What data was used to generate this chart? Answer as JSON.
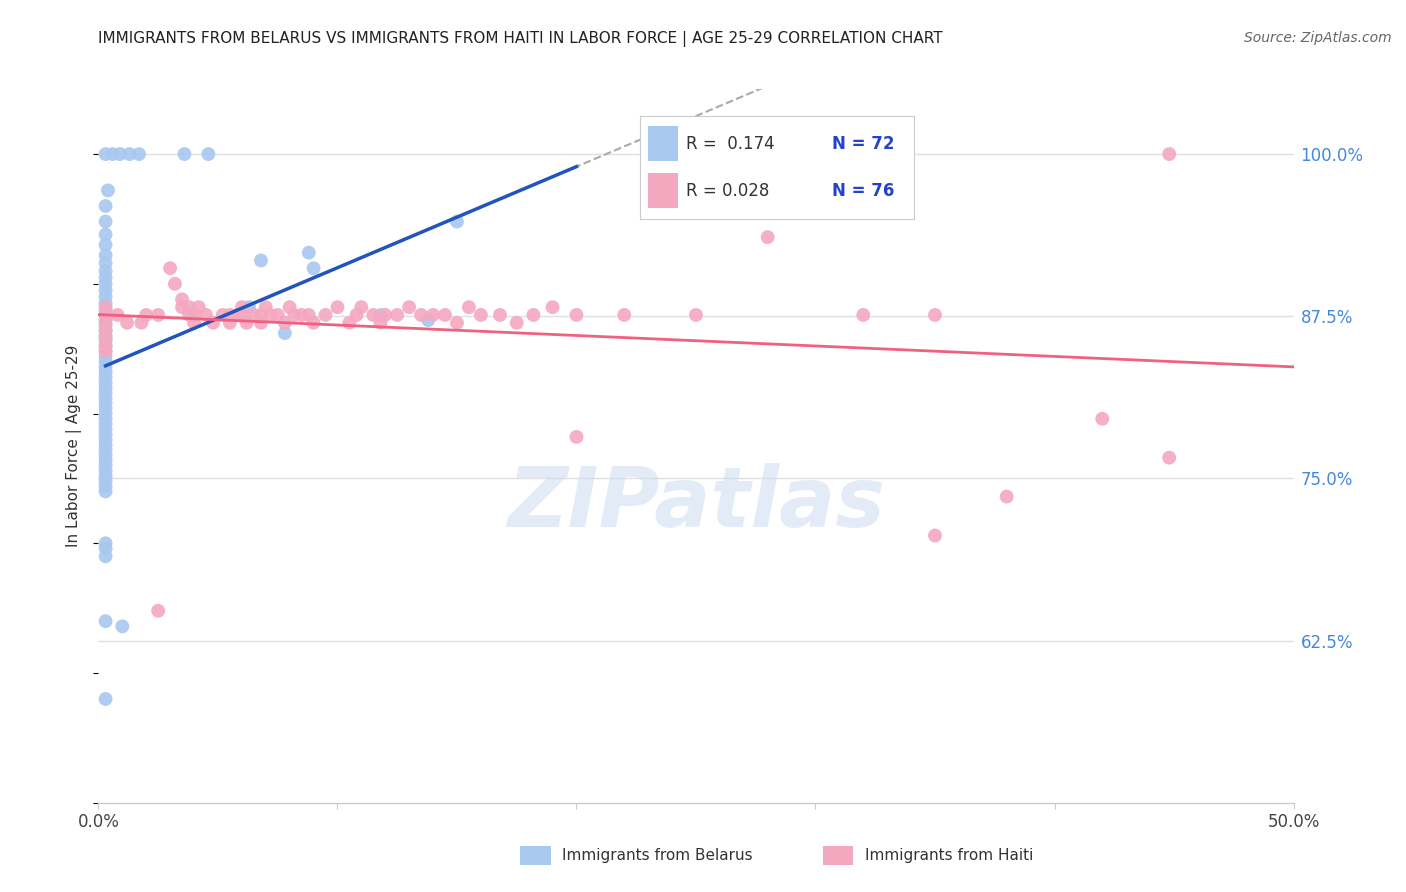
{
  "title": "IMMIGRANTS FROM BELARUS VS IMMIGRANTS FROM HAITI IN LABOR FORCE | AGE 25-29 CORRELATION CHART",
  "source": "Source: ZipAtlas.com",
  "ylabel": "In Labor Force | Age 25-29",
  "xlim": [
    0.0,
    0.5
  ],
  "ylim": [
    0.5,
    1.05
  ],
  "ytick_positions": [
    0.625,
    0.75,
    0.875,
    1.0
  ],
  "ytick_labels_right": [
    "62.5%",
    "75.0%",
    "87.5%",
    "100.0%"
  ],
  "blue_color": "#a8c8f0",
  "pink_color": "#f4a8c0",
  "blue_line_color": "#2255bb",
  "pink_line_color": "#f06080",
  "dash_color": "#aaaaaa",
  "blue_scatter": [
    [
      0.003,
      1.0
    ],
    [
      0.006,
      1.0
    ],
    [
      0.009,
      1.0
    ],
    [
      0.013,
      1.0
    ],
    [
      0.017,
      1.0
    ],
    [
      0.036,
      1.0
    ],
    [
      0.046,
      1.0
    ],
    [
      0.004,
      0.972
    ],
    [
      0.003,
      0.96
    ],
    [
      0.003,
      0.948
    ],
    [
      0.003,
      0.938
    ],
    [
      0.003,
      0.93
    ],
    [
      0.003,
      0.922
    ],
    [
      0.003,
      0.916
    ],
    [
      0.003,
      0.91
    ],
    [
      0.003,
      0.905
    ],
    [
      0.003,
      0.9
    ],
    [
      0.003,
      0.895
    ],
    [
      0.003,
      0.89
    ],
    [
      0.003,
      0.885
    ],
    [
      0.003,
      0.88
    ],
    [
      0.003,
      0.876
    ],
    [
      0.003,
      0.872
    ],
    [
      0.003,
      0.868
    ],
    [
      0.003,
      0.864
    ],
    [
      0.003,
      0.86
    ],
    [
      0.003,
      0.856
    ],
    [
      0.003,
      0.852
    ],
    [
      0.003,
      0.848
    ],
    [
      0.003,
      0.844
    ],
    [
      0.003,
      0.84
    ],
    [
      0.003,
      0.836
    ],
    [
      0.003,
      0.832
    ],
    [
      0.003,
      0.828
    ],
    [
      0.003,
      0.824
    ],
    [
      0.003,
      0.82
    ],
    [
      0.003,
      0.816
    ],
    [
      0.003,
      0.812
    ],
    [
      0.003,
      0.808
    ],
    [
      0.003,
      0.804
    ],
    [
      0.003,
      0.8
    ],
    [
      0.003,
      0.796
    ],
    [
      0.003,
      0.792
    ],
    [
      0.003,
      0.788
    ],
    [
      0.003,
      0.784
    ],
    [
      0.003,
      0.78
    ],
    [
      0.003,
      0.776
    ],
    [
      0.003,
      0.772
    ],
    [
      0.003,
      0.768
    ],
    [
      0.003,
      0.764
    ],
    [
      0.003,
      0.76
    ],
    [
      0.003,
      0.756
    ],
    [
      0.003,
      0.752
    ],
    [
      0.003,
      0.748
    ],
    [
      0.003,
      0.744
    ],
    [
      0.003,
      0.74
    ],
    [
      0.003,
      0.7
    ],
    [
      0.003,
      0.696
    ],
    [
      0.003,
      0.69
    ],
    [
      0.003,
      0.64
    ],
    [
      0.01,
      0.636
    ],
    [
      0.003,
      0.58
    ],
    [
      0.09,
      0.912
    ],
    [
      0.15,
      0.948
    ],
    [
      0.063,
      0.882
    ],
    [
      0.078,
      0.862
    ],
    [
      0.068,
      0.918
    ],
    [
      0.088,
      0.924
    ],
    [
      0.118,
      0.876
    ],
    [
      0.138,
      0.872
    ]
  ],
  "pink_scatter": [
    [
      0.003,
      0.882
    ],
    [
      0.003,
      0.876
    ],
    [
      0.003,
      0.87
    ],
    [
      0.003,
      0.864
    ],
    [
      0.003,
      0.858
    ],
    [
      0.003,
      0.852
    ],
    [
      0.003,
      0.848
    ],
    [
      0.008,
      0.876
    ],
    [
      0.012,
      0.87
    ],
    [
      0.018,
      0.87
    ],
    [
      0.02,
      0.876
    ],
    [
      0.025,
      0.876
    ],
    [
      0.025,
      0.648
    ],
    [
      0.03,
      0.912
    ],
    [
      0.032,
      0.9
    ],
    [
      0.035,
      0.888
    ],
    [
      0.035,
      0.882
    ],
    [
      0.038,
      0.882
    ],
    [
      0.038,
      0.876
    ],
    [
      0.04,
      0.876
    ],
    [
      0.04,
      0.87
    ],
    [
      0.042,
      0.882
    ],
    [
      0.045,
      0.876
    ],
    [
      0.048,
      0.87
    ],
    [
      0.052,
      0.876
    ],
    [
      0.055,
      0.876
    ],
    [
      0.055,
      0.87
    ],
    [
      0.058,
      0.876
    ],
    [
      0.06,
      0.882
    ],
    [
      0.06,
      0.876
    ],
    [
      0.062,
      0.87
    ],
    [
      0.065,
      0.876
    ],
    [
      0.068,
      0.876
    ],
    [
      0.068,
      0.87
    ],
    [
      0.07,
      0.882
    ],
    [
      0.072,
      0.876
    ],
    [
      0.075,
      0.876
    ],
    [
      0.078,
      0.87
    ],
    [
      0.08,
      0.882
    ],
    [
      0.082,
      0.876
    ],
    [
      0.085,
      0.876
    ],
    [
      0.088,
      0.876
    ],
    [
      0.09,
      0.87
    ],
    [
      0.095,
      0.876
    ],
    [
      0.1,
      0.882
    ],
    [
      0.105,
      0.87
    ],
    [
      0.108,
      0.876
    ],
    [
      0.11,
      0.882
    ],
    [
      0.115,
      0.876
    ],
    [
      0.118,
      0.87
    ],
    [
      0.12,
      0.876
    ],
    [
      0.125,
      0.876
    ],
    [
      0.13,
      0.882
    ],
    [
      0.135,
      0.876
    ],
    [
      0.14,
      0.876
    ],
    [
      0.145,
      0.876
    ],
    [
      0.15,
      0.87
    ],
    [
      0.155,
      0.882
    ],
    [
      0.16,
      0.876
    ],
    [
      0.168,
      0.876
    ],
    [
      0.175,
      0.87
    ],
    [
      0.182,
      0.876
    ],
    [
      0.19,
      0.882
    ],
    [
      0.2,
      0.876
    ],
    [
      0.22,
      0.876
    ],
    [
      0.25,
      0.876
    ],
    [
      0.28,
      0.936
    ],
    [
      0.32,
      0.876
    ],
    [
      0.35,
      0.876
    ],
    [
      0.38,
      0.736
    ],
    [
      0.42,
      0.796
    ],
    [
      0.448,
      1.0
    ],
    [
      0.35,
      0.706
    ],
    [
      0.448,
      0.766
    ],
    [
      0.2,
      0.782
    ]
  ],
  "watermark": "ZIPatlas",
  "background_color": "#ffffff",
  "grid_color": "#e0e0e0"
}
